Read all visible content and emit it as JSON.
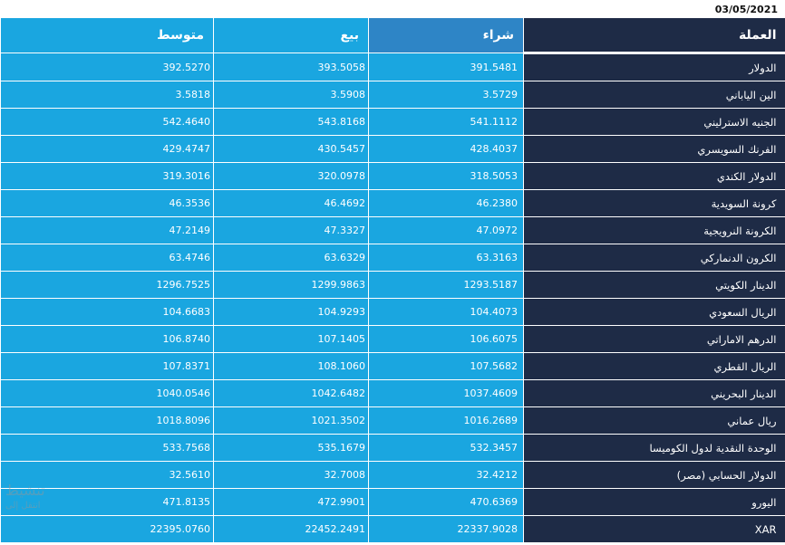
{
  "date": "03/05/2021",
  "headers": {
    "currency": "العملة",
    "buy": "شراء",
    "sell": "بيع",
    "avg": "متوسط"
  },
  "rows": [
    {
      "currency": "الدولار",
      "buy": "391.5481",
      "sell": "393.5058",
      "avg": "392.5270"
    },
    {
      "currency": "الين الياباني",
      "buy": "3.5729",
      "sell": "3.5908",
      "avg": "3.5818"
    },
    {
      "currency": "الجنيه الاسترليني",
      "buy": "541.1112",
      "sell": "543.8168",
      "avg": "542.4640"
    },
    {
      "currency": "الفرنك السويسري",
      "buy": "428.4037",
      "sell": "430.5457",
      "avg": "429.4747"
    },
    {
      "currency": "الدولار الكندي",
      "buy": "318.5053",
      "sell": "320.0978",
      "avg": "319.3016"
    },
    {
      "currency": "كرونة السويدية",
      "buy": "46.2380",
      "sell": "46.4692",
      "avg": "46.3536"
    },
    {
      "currency": "الكرونة النرويجية",
      "buy": "47.0972",
      "sell": "47.3327",
      "avg": "47.2149"
    },
    {
      "currency": "الكرون الدنماركي",
      "buy": "63.3163",
      "sell": "63.6329",
      "avg": "63.4746"
    },
    {
      "currency": "الدينار الكويتي",
      "buy": "1293.5187",
      "sell": "1299.9863",
      "avg": "1296.7525"
    },
    {
      "currency": "الريال السعودي",
      "buy": "104.4073",
      "sell": "104.9293",
      "avg": "104.6683"
    },
    {
      "currency": "الدرهم الاماراتي",
      "buy": "106.6075",
      "sell": "107.1405",
      "avg": "106.8740"
    },
    {
      "currency": "الريال القطري",
      "buy": "107.5682",
      "sell": "108.1060",
      "avg": "107.8371"
    },
    {
      "currency": "الدينار البحريني",
      "buy": "1037.4609",
      "sell": "1042.6482",
      "avg": "1040.0546"
    },
    {
      "currency": "ريال عماني",
      "buy": "1016.2689",
      "sell": "1021.3502",
      "avg": "1018.8096"
    },
    {
      "currency": "الوحدة النقدية لدول الكوميسا",
      "buy": "532.3457",
      "sell": "535.1679",
      "avg": "533.7568"
    },
    {
      "currency": "الدولار الحسابي (مصر)",
      "buy": "32.4212",
      "sell": "32.7008",
      "avg": "32.5610"
    },
    {
      "currency": "اليورو",
      "buy": "470.6369",
      "sell": "472.9901",
      "avg": "471.8135"
    },
    {
      "currency": "XAR",
      "buy": "22337.9028",
      "sell": "22452.2491",
      "avg": "22395.0760"
    }
  ],
  "watermark": {
    "line1": "تنشيط",
    "line2": "انتقل إلى"
  },
  "colors": {
    "dark": "#1e2b46",
    "buy_header": "#2e85c6",
    "cell": "#1aa6e0"
  }
}
